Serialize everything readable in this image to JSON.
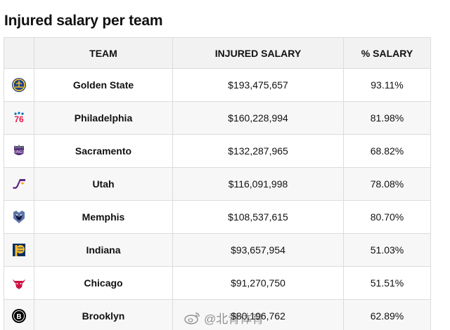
{
  "title": "Injured salary per team",
  "columns": [
    "",
    "TEAM",
    "INJURED SALARY",
    "% SALARY"
  ],
  "rows": [
    {
      "logo": "warriors-logo-icon",
      "team": "Golden State",
      "salary": "$193,475,657",
      "pct": "93.11%"
    },
    {
      "logo": "76ers-logo-icon",
      "team": "Philadelphia",
      "salary": "$160,228,994",
      "pct": "81.98%"
    },
    {
      "logo": "kings-logo-icon",
      "team": "Sacramento",
      "salary": "$132,287,965",
      "pct": "68.82%"
    },
    {
      "logo": "jazz-logo-icon",
      "team": "Utah",
      "salary": "$116,091,998",
      "pct": "78.08%"
    },
    {
      "logo": "grizzlies-logo-icon",
      "team": "Memphis",
      "salary": "$108,537,615",
      "pct": "80.70%"
    },
    {
      "logo": "pacers-logo-icon",
      "team": "Indiana",
      "salary": "$93,657,954",
      "pct": "51.03%"
    },
    {
      "logo": "bulls-logo-icon",
      "team": "Chicago",
      "salary": "$91,270,750",
      "pct": "51.51%"
    },
    {
      "logo": "nets-logo-icon",
      "team": "Brooklyn",
      "salary": "$80,196,762",
      "pct": "62.89%"
    }
  ],
  "watermark": "@北青体育",
  "colors": {
    "header_bg": "#f2f2f2",
    "row_alt_bg": "#f7f7f7",
    "border": "#dcdcdc"
  }
}
